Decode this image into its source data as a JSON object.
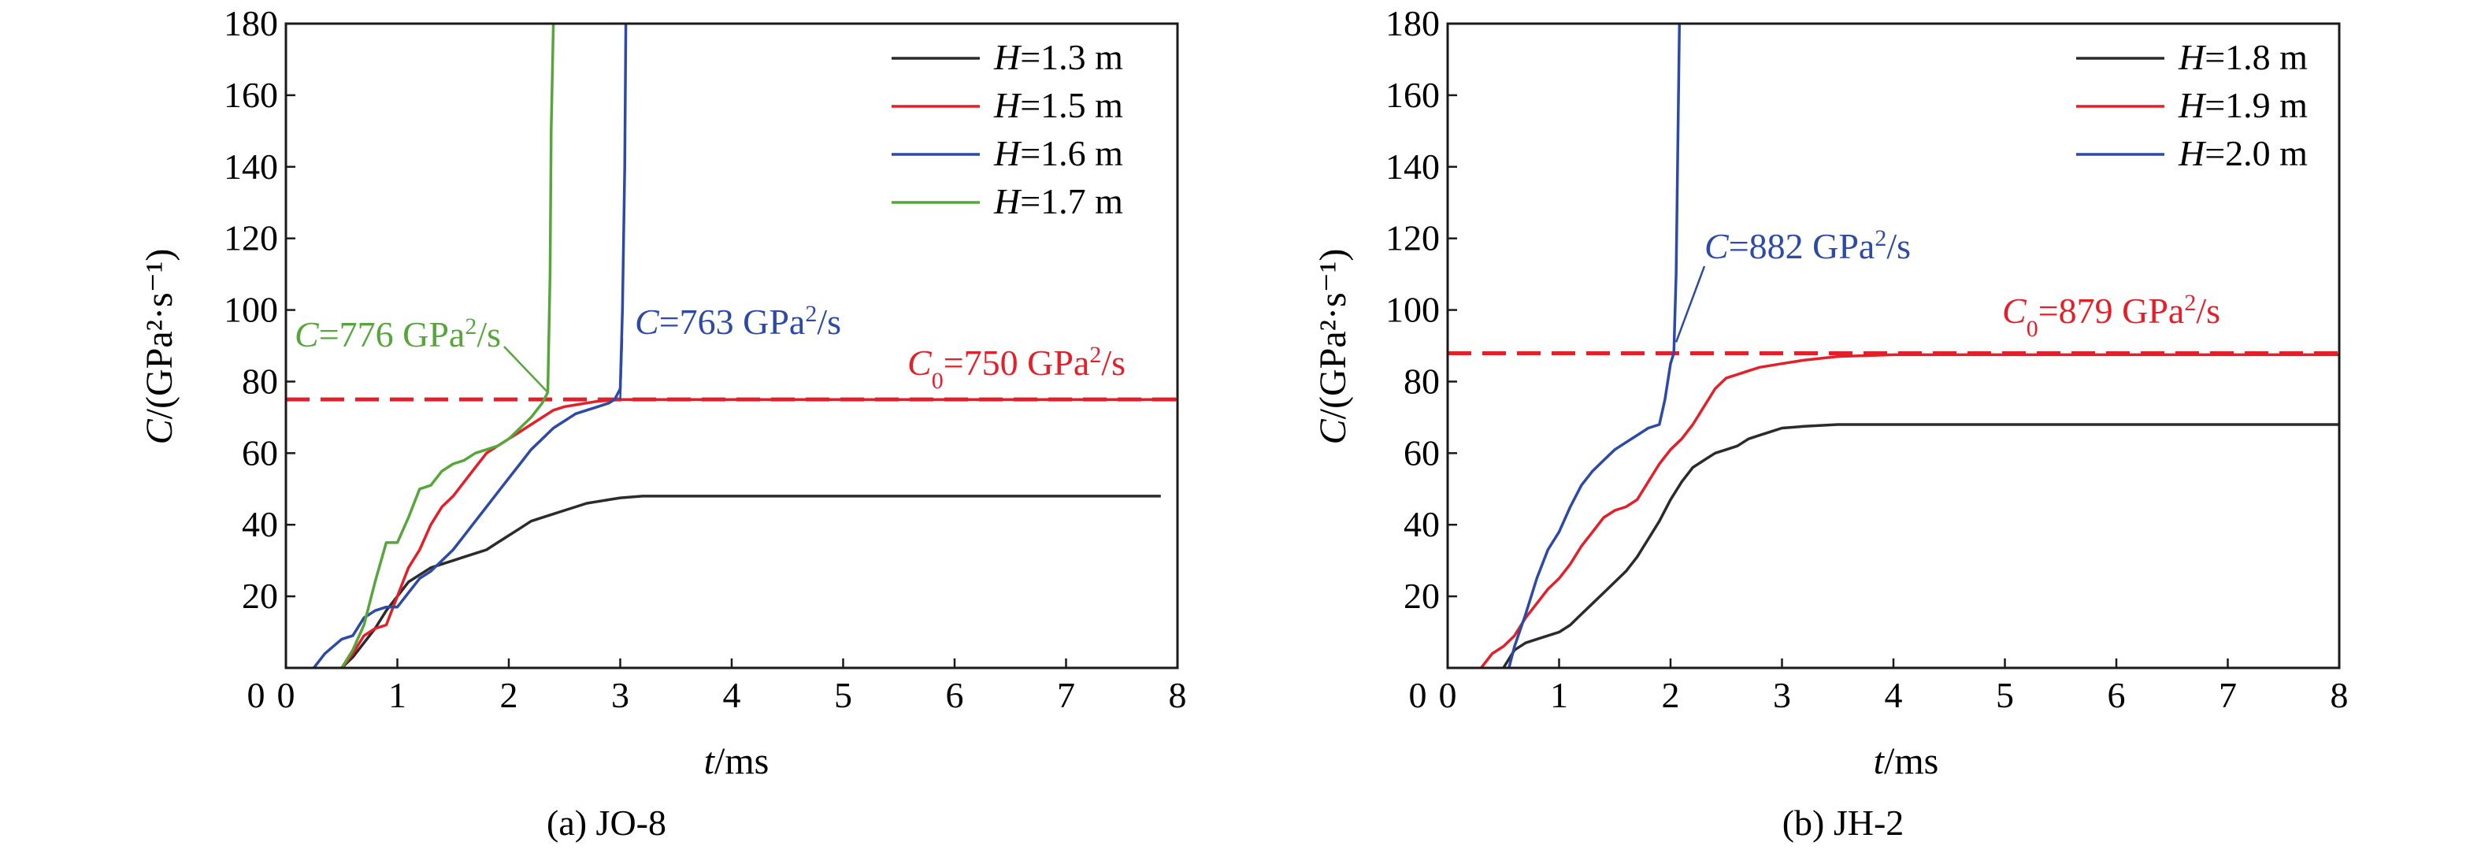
{
  "figure": {
    "background": "#ffffff"
  },
  "chart_data": [
    {
      "type": "line",
      "caption": "(a) JO-8",
      "xlabel": {
        "italic": "t",
        "rest": "/ms"
      },
      "ylabel": {
        "italic": "C",
        "rest": "/(GPa²·s⁻¹)"
      },
      "xlim": [
        0,
        8
      ],
      "ylim": [
        0,
        180
      ],
      "xticks": [
        "0",
        "1",
        "2",
        "3",
        "4",
        "5",
        "6",
        "7",
        "8"
      ],
      "yticks": [
        "20",
        "40",
        "60",
        "80",
        "100",
        "120",
        "140",
        "160",
        "180"
      ],
      "grid": false,
      "legend_position": "top-right",
      "series": [
        {
          "name": "H=1.3 m",
          "legend_var": "H",
          "legend_rest": "=1.3 m",
          "color": "#2b2b2b",
          "points": [
            [
              0.5,
              0
            ],
            [
              0.6,
              3
            ],
            [
              0.7,
              7
            ],
            [
              0.8,
              11
            ],
            [
              0.9,
              16
            ],
            [
              1.0,
              20
            ],
            [
              1.1,
              24
            ],
            [
              1.2,
              26
            ],
            [
              1.3,
              28
            ],
            [
              1.4,
              29
            ],
            [
              1.5,
              30
            ],
            [
              1.6,
              31
            ],
            [
              1.7,
              32
            ],
            [
              1.8,
              33
            ],
            [
              1.9,
              35
            ],
            [
              2.0,
              37
            ],
            [
              2.1,
              39
            ],
            [
              2.2,
              41
            ],
            [
              2.3,
              42
            ],
            [
              2.4,
              43
            ],
            [
              2.5,
              44
            ],
            [
              2.6,
              45
            ],
            [
              2.7,
              46
            ],
            [
              2.8,
              46.5
            ],
            [
              2.9,
              47
            ],
            [
              3.0,
              47.5
            ],
            [
              3.2,
              48
            ],
            [
              3.5,
              48
            ],
            [
              4,
              48
            ],
            [
              5,
              48
            ],
            [
              6,
              48
            ],
            [
              7,
              48
            ],
            [
              7.85,
              48
            ]
          ]
        },
        {
          "name": "H=1.5 m",
          "legend_var": "H",
          "legend_rest": "=1.5 m",
          "color": "#e3202a",
          "points": [
            [
              0.5,
              0
            ],
            [
              0.6,
              4
            ],
            [
              0.7,
              9
            ],
            [
              0.8,
              11
            ],
            [
              0.9,
              12
            ],
            [
              1.0,
              20
            ],
            [
              1.1,
              28
            ],
            [
              1.2,
              33
            ],
            [
              1.3,
              40
            ],
            [
              1.4,
              45
            ],
            [
              1.5,
              48
            ],
            [
              1.6,
              52
            ],
            [
              1.7,
              56
            ],
            [
              1.8,
              60
            ],
            [
              1.9,
              62
            ],
            [
              2.0,
              64
            ],
            [
              2.1,
              66
            ],
            [
              2.2,
              68
            ],
            [
              2.3,
              70
            ],
            [
              2.4,
              72
            ],
            [
              2.5,
              73
            ],
            [
              2.6,
              73.5
            ],
            [
              2.7,
              74
            ],
            [
              2.8,
              74.5
            ],
            [
              3.0,
              75
            ],
            [
              3.5,
              75
            ],
            [
              4,
              75
            ],
            [
              5,
              75
            ],
            [
              6,
              75
            ],
            [
              7,
              75
            ],
            [
              8,
              75
            ]
          ]
        },
        {
          "name": "H=1.6 m",
          "legend_var": "H",
          "legend_rest": "=1.6 m",
          "color": "#2c4aa6",
          "points": [
            [
              0.25,
              0
            ],
            [
              0.35,
              4
            ],
            [
              0.5,
              8
            ],
            [
              0.6,
              9
            ],
            [
              0.7,
              14
            ],
            [
              0.8,
              16
            ],
            [
              0.9,
              17
            ],
            [
              1.0,
              17
            ],
            [
              1.1,
              21
            ],
            [
              1.2,
              25
            ],
            [
              1.3,
              27
            ],
            [
              1.4,
              30
            ],
            [
              1.5,
              33
            ],
            [
              1.6,
              37
            ],
            [
              1.7,
              41
            ],
            [
              1.8,
              45
            ],
            [
              1.9,
              49
            ],
            [
              2.0,
              53
            ],
            [
              2.1,
              57
            ],
            [
              2.2,
              61
            ],
            [
              2.3,
              64
            ],
            [
              2.4,
              67
            ],
            [
              2.5,
              69
            ],
            [
              2.6,
              71
            ],
            [
              2.7,
              72
            ],
            [
              2.8,
              73
            ],
            [
              2.9,
              74
            ],
            [
              2.95,
              75
            ],
            [
              3.0,
              78
            ],
            [
              3.02,
              100
            ],
            [
              3.04,
              140
            ],
            [
              3.05,
              180
            ]
          ]
        },
        {
          "name": "H=1.7 m",
          "legend_var": "H",
          "legend_rest": "=1.7 m",
          "color": "#57a63c",
          "points": [
            [
              0.5,
              0
            ],
            [
              0.6,
              5
            ],
            [
              0.7,
              12
            ],
            [
              0.8,
              24
            ],
            [
              0.9,
              35
            ],
            [
              1.0,
              35
            ],
            [
              1.1,
              42
            ],
            [
              1.2,
              50
            ],
            [
              1.3,
              51
            ],
            [
              1.4,
              55
            ],
            [
              1.5,
              57
            ],
            [
              1.6,
              58
            ],
            [
              1.7,
              60
            ],
            [
              1.8,
              61
            ],
            [
              1.9,
              62
            ],
            [
              2.0,
              64
            ],
            [
              2.1,
              67
            ],
            [
              2.2,
              70
            ],
            [
              2.3,
              74
            ],
            [
              2.35,
              77
            ],
            [
              2.37,
              110
            ],
            [
              2.38,
              150
            ],
            [
              2.4,
              180
            ]
          ]
        }
      ],
      "reference_line": {
        "value": 75,
        "color": "#e3202a",
        "dash": true
      },
      "annotations": [
        {
          "sym": "C",
          "sub": "",
          "pre": "=776 GPa",
          "sup": "2",
          "post": "/s",
          "color": "#57a63c",
          "target": [
            2.35,
            77
          ]
        },
        {
          "sym": "C",
          "sub": "",
          "pre": "=763 GPa",
          "sup": "2",
          "post": "/s",
          "color": "#2c4aa6",
          "target": [
            3.0,
            75
          ]
        },
        {
          "sym": "C",
          "sub": "0",
          "pre": "=750 GPa",
          "sup": "2",
          "post": "/s",
          "color": "#e3202a",
          "target": null
        }
      ]
    },
    {
      "type": "line",
      "caption": "(b) JH-2",
      "xlabel": {
        "italic": "t",
        "rest": "/ms"
      },
      "ylabel": {
        "italic": "C",
        "rest": "/(GPa²·s⁻¹)"
      },
      "xlim": [
        0,
        8
      ],
      "ylim": [
        0,
        180
      ],
      "xticks": [
        "0",
        "1",
        "2",
        "3",
        "4",
        "5",
        "6",
        "7",
        "8"
      ],
      "yticks": [
        "20",
        "40",
        "60",
        "80",
        "100",
        "120",
        "140",
        "160",
        "180"
      ],
      "grid": false,
      "legend_position": "top-right",
      "series": [
        {
          "name": "H=1.8 m",
          "legend_var": "H",
          "legend_rest": "=1.8 m",
          "color": "#2b2b2b",
          "points": [
            [
              0.5,
              0
            ],
            [
              0.6,
              5
            ],
            [
              0.7,
              7
            ],
            [
              0.8,
              8
            ],
            [
              1.0,
              10
            ],
            [
              1.1,
              12
            ],
            [
              1.2,
              15
            ],
            [
              1.3,
              18
            ],
            [
              1.4,
              21
            ],
            [
              1.5,
              24
            ],
            [
              1.6,
              27
            ],
            [
              1.7,
              31
            ],
            [
              1.8,
              36
            ],
            [
              1.9,
              41
            ],
            [
              2.0,
              47
            ],
            [
              2.1,
              52
            ],
            [
              2.2,
              56
            ],
            [
              2.3,
              58
            ],
            [
              2.4,
              60
            ],
            [
              2.5,
              61
            ],
            [
              2.6,
              62
            ],
            [
              2.7,
              64
            ],
            [
              2.8,
              65
            ],
            [
              2.9,
              66
            ],
            [
              3.0,
              67
            ],
            [
              3.2,
              67.5
            ],
            [
              3.5,
              68
            ],
            [
              4,
              68
            ],
            [
              5,
              68
            ],
            [
              6,
              68
            ],
            [
              7,
              68
            ],
            [
              8,
              68
            ]
          ]
        },
        {
          "name": "H=1.9 m",
          "legend_var": "H",
          "legend_rest": "=1.9 m",
          "color": "#e3202a",
          "points": [
            [
              0.3,
              0
            ],
            [
              0.4,
              4
            ],
            [
              0.5,
              6
            ],
            [
              0.6,
              9
            ],
            [
              0.7,
              14
            ],
            [
              0.8,
              18
            ],
            [
              0.9,
              22
            ],
            [
              1.0,
              25
            ],
            [
              1.1,
              29
            ],
            [
              1.2,
              34
            ],
            [
              1.3,
              38
            ],
            [
              1.4,
              42
            ],
            [
              1.5,
              44
            ],
            [
              1.6,
              45
            ],
            [
              1.7,
              47
            ],
            [
              1.8,
              52
            ],
            [
              1.9,
              57
            ],
            [
              2.0,
              61
            ],
            [
              2.1,
              64
            ],
            [
              2.2,
              68
            ],
            [
              2.3,
              73
            ],
            [
              2.4,
              78
            ],
            [
              2.5,
              81
            ],
            [
              2.6,
              82
            ],
            [
              2.7,
              83
            ],
            [
              2.8,
              84
            ],
            [
              3.0,
              85
            ],
            [
              3.2,
              86
            ],
            [
              3.5,
              87
            ],
            [
              4,
              87.5
            ],
            [
              5,
              87.5
            ],
            [
              6,
              87.5
            ],
            [
              7,
              87.5
            ],
            [
              8,
              87.5
            ]
          ]
        },
        {
          "name": "H=2.0 m",
          "legend_var": "H",
          "legend_rest": "=2.0 m",
          "color": "#2c4aa6",
          "points": [
            [
              0.55,
              0
            ],
            [
              0.6,
              6
            ],
            [
              0.7,
              15
            ],
            [
              0.8,
              25
            ],
            [
              0.9,
              33
            ],
            [
              1.0,
              38
            ],
            [
              1.1,
              45
            ],
            [
              1.2,
              51
            ],
            [
              1.3,
              55
            ],
            [
              1.4,
              58
            ],
            [
              1.5,
              61
            ],
            [
              1.6,
              63
            ],
            [
              1.7,
              65
            ],
            [
              1.8,
              67
            ],
            [
              1.9,
              68
            ],
            [
              1.95,
              75
            ],
            [
              2.0,
              85
            ],
            [
              2.03,
              88
            ],
            [
              2.05,
              110
            ],
            [
              2.08,
              180
            ]
          ]
        }
      ],
      "reference_line": {
        "value": 87.9,
        "color": "#e3202a",
        "dash": true
      },
      "annotations": [
        {
          "sym": "C",
          "sub": "",
          "pre": "=882 GPa",
          "sup": "2",
          "post": "/s",
          "color": "#2c4aa6",
          "target": [
            2.05,
            91
          ]
        },
        {
          "sym": "C",
          "sub": "0",
          "pre": "=879 GPa",
          "sup": "2",
          "post": "/s",
          "color": "#e3202a",
          "target": null
        }
      ]
    }
  ]
}
